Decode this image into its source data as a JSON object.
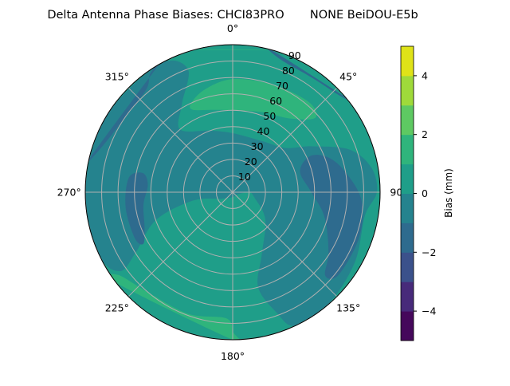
{
  "chart_data": {
    "type": "heatmap",
    "projection": "polar",
    "plot_style": "filled contour",
    "title": "Delta Antenna Phase Biases: CHCI83PRO       NONE BeiDOU-E5b",
    "angular_axis": {
      "direction": "clockwise",
      "zero_location": "top",
      "tick_labels": [
        "0°",
        "45°",
        "90",
        "135°",
        "180°",
        "225°",
        "270°",
        "315°"
      ],
      "ticks": [
        0,
        45,
        90,
        135,
        180,
        225,
        270,
        315
      ]
    },
    "radial_axis": {
      "range": [
        0,
        90
      ],
      "ticks": [
        10,
        20,
        30,
        40,
        50,
        60,
        70,
        80,
        90
      ],
      "tick_labels": [
        "10",
        "20",
        "30",
        "40",
        "50",
        "60",
        "70",
        "80",
        "90"
      ]
    },
    "grid": true,
    "colorbar": {
      "label": "Bias (mm)",
      "range": [
        -5,
        5
      ],
      "levels": [
        -5,
        -4,
        -3,
        -2,
        -1,
        0,
        1,
        2,
        3,
        4,
        5
      ],
      "ticks": [
        -4,
        -2,
        0,
        2,
        4
      ],
      "tick_labels": [
        "−4",
        "−2",
        "0",
        "2",
        "4"
      ],
      "colormap": "viridis",
      "band_colors": [
        "#45085b",
        "#472a7a",
        "#3b518b",
        "#2e6b8e",
        "#25838e",
        "#1f9e89",
        "#2fb47c",
        "#5ec962",
        "#9fda3a",
        "#dfe318"
      ]
    },
    "background_band": [
      0,
      1
    ],
    "regions": [
      {
        "band": [
          -1,
          0
        ],
        "points": [
          [
            270,
            90
          ],
          [
            300,
            90
          ],
          [
            330,
            90
          ],
          [
            340,
            80
          ],
          [
            330,
            62
          ],
          [
            320,
            50
          ],
          [
            340,
            40
          ],
          [
            0,
            36
          ],
          [
            30,
            36
          ],
          [
            50,
            42
          ],
          [
            60,
            56
          ],
          [
            70,
            76
          ],
          [
            80,
            86
          ],
          [
            90,
            88
          ],
          [
            100,
            82
          ],
          [
            120,
            86
          ],
          [
            140,
            90
          ],
          [
            155,
            90
          ],
          [
            160,
            78
          ],
          [
            165,
            60
          ],
          [
            155,
            42
          ],
          [
            130,
            26
          ],
          [
            105,
            14
          ],
          [
            90,
            10
          ],
          [
            120,
            3
          ],
          [
            180,
            3
          ],
          [
            240,
            8
          ],
          [
            258,
            25
          ],
          [
            250,
            50
          ],
          [
            238,
            70
          ],
          [
            235,
            84
          ],
          [
            245,
            90
          ]
        ]
      },
      {
        "band": [
          -2,
          -1
        ],
        "points": [
          [
            65,
            52
          ],
          [
            73,
            43
          ],
          [
            90,
            48
          ],
          [
            105,
            58
          ],
          [
            122,
            69
          ],
          [
            132,
            76
          ],
          [
            128,
            82
          ],
          [
            110,
            82
          ],
          [
            94,
            79
          ],
          [
            80,
            70
          ],
          [
            70,
            62
          ]
        ]
      },
      {
        "band": [
          -2,
          -1
        ],
        "points": [
          [
            282,
            56
          ],
          [
            275,
            52
          ],
          [
            262,
            55
          ],
          [
            248,
            58
          ],
          [
            240,
            63
          ],
          [
            245,
            66
          ],
          [
            262,
            66
          ],
          [
            278,
            64
          ]
        ]
      },
      {
        "band": [
          -2,
          -1
        ],
        "points": [
          [
            283,
            90
          ],
          [
            290,
            84
          ],
          [
            305,
            80
          ],
          [
            320,
            82
          ],
          [
            325,
            88
          ],
          [
            330,
            90
          ]
        ]
      },
      {
        "band": [
          -2,
          -1
        ],
        "points": [
          [
            15,
            90
          ],
          [
            20,
            86
          ],
          [
            35,
            85
          ],
          [
            48,
            88
          ],
          [
            50,
            90
          ]
        ]
      },
      {
        "band": [
          1,
          2
        ],
        "points": [
          [
            334,
            56
          ],
          [
            345,
            52
          ],
          [
            0,
            50
          ],
          [
            20,
            52
          ],
          [
            38,
            57
          ],
          [
            48,
            68
          ],
          [
            40,
            72
          ],
          [
            20,
            70
          ],
          [
            0,
            69
          ],
          [
            345,
            65
          ],
          [
            335,
            60
          ]
        ]
      },
      {
        "band": [
          1,
          2
        ],
        "points": [
          [
            232,
            90
          ],
          [
            234,
            86
          ],
          [
            220,
            80
          ],
          [
            200,
            79
          ],
          [
            183,
            77
          ],
          [
            180,
            85
          ],
          [
            180,
            90
          ]
        ]
      },
      {
        "band": [
          1,
          2
        ],
        "points": [
          [
            345,
            90
          ],
          [
            350,
            88
          ],
          [
            10,
            88
          ],
          [
            15,
            90
          ]
        ]
      }
    ]
  }
}
